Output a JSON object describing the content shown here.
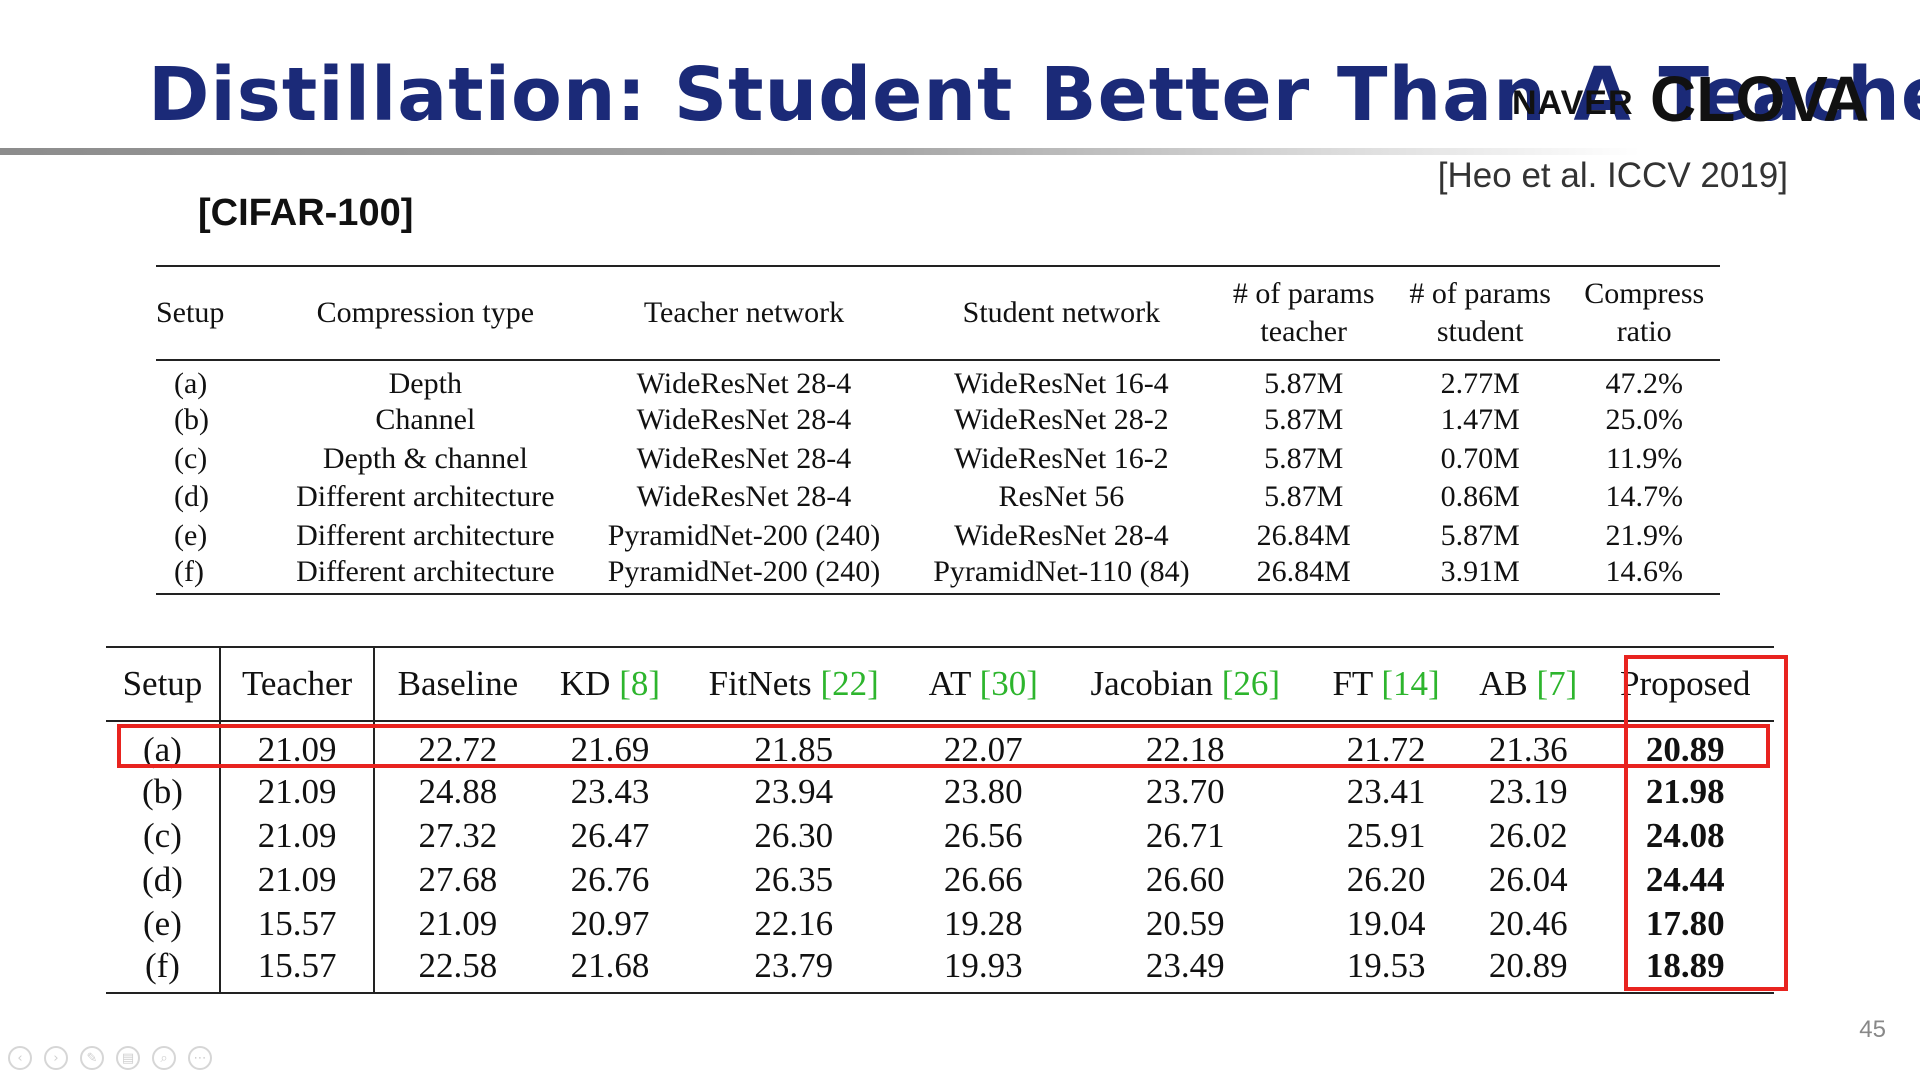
{
  "slide": {
    "title": "Distillation: Student Better Than A Teacher",
    "logo": {
      "naver": "NAVER",
      "clova": "CLOVA"
    },
    "citation": "[Heo et al. ICCV 2019]",
    "dataset_label": "[CIFAR-100]",
    "page_number": "45"
  },
  "table1": {
    "headers": {
      "setup": "Setup",
      "compression_type": "Compression type",
      "teacher_network": "Teacher network",
      "student_network": "Student network",
      "params_teacher_1": "# of params",
      "params_teacher_2": "teacher",
      "params_student_1": "# of params",
      "params_student_2": "student",
      "compress_ratio_1": "Compress",
      "compress_ratio_2": "ratio"
    },
    "rows": [
      [
        "(a)",
        "Depth",
        "WideResNet 28-4",
        "WideResNet 16-4",
        "5.87M",
        "2.77M",
        "47.2%"
      ],
      [
        "(b)",
        "Channel",
        "WideResNet 28-4",
        "WideResNet 28-2",
        "5.87M",
        "1.47M",
        "25.0%"
      ],
      [
        "(c)",
        "Depth & channel",
        "WideResNet 28-4",
        "WideResNet 16-2",
        "5.87M",
        "0.70M",
        "11.9%"
      ],
      [
        "(d)",
        "Different architecture",
        "WideResNet 28-4",
        "ResNet 56",
        "5.87M",
        "0.86M",
        "14.7%"
      ],
      [
        "(e)",
        "Different architecture",
        "PyramidNet-200 (240)",
        "WideResNet 28-4",
        "26.84M",
        "5.87M",
        "21.9%"
      ],
      [
        "(f)",
        "Different architecture",
        "PyramidNet-200 (240)",
        "PyramidNet-110 (84)",
        "26.84M",
        "3.91M",
        "14.6%"
      ]
    ]
  },
  "table2": {
    "headers": {
      "setup": "Setup",
      "teacher": "Teacher",
      "baseline": "Baseline",
      "kd": "KD",
      "kd_ref": "[8]",
      "fitnets": "FitNets",
      "fitnets_ref": "[22]",
      "at": "AT",
      "at_ref": "[30]",
      "jacobian": "Jacobian",
      "jacobian_ref": "[26]",
      "ft": "FT",
      "ft_ref": "[14]",
      "ab": "AB",
      "ab_ref": "[7]",
      "proposed": "Proposed"
    },
    "rows": [
      [
        "(a)",
        "21.09",
        "22.72",
        "21.69",
        "21.85",
        "22.07",
        "22.18",
        "21.72",
        "21.36",
        "20.89"
      ],
      [
        "(b)",
        "21.09",
        "24.88",
        "23.43",
        "23.94",
        "23.80",
        "23.70",
        "23.41",
        "23.19",
        "21.98"
      ],
      [
        "(c)",
        "21.09",
        "27.32",
        "26.47",
        "26.30",
        "26.56",
        "26.71",
        "25.91",
        "26.02",
        "24.08"
      ],
      [
        "(d)",
        "21.09",
        "27.68",
        "26.76",
        "26.35",
        "26.66",
        "26.60",
        "26.20",
        "26.04",
        "24.44"
      ],
      [
        "(e)",
        "15.57",
        "21.09",
        "20.97",
        "22.16",
        "19.28",
        "20.59",
        "19.04",
        "20.46",
        "17.80"
      ],
      [
        "(f)",
        "15.57",
        "22.58",
        "21.68",
        "23.79",
        "19.93",
        "23.49",
        "19.53",
        "20.89",
        "18.89"
      ]
    ],
    "highlight_color": "#e8231f",
    "ref_color": "#2db52d"
  },
  "controls": {
    "icons": [
      "prev-icon",
      "next-icon",
      "pen-icon",
      "slides-icon",
      "zoom-icon",
      "more-icon"
    ],
    "glyphs": [
      "‹",
      "›",
      "✎",
      "▤",
      "⌕",
      "⋯"
    ]
  }
}
